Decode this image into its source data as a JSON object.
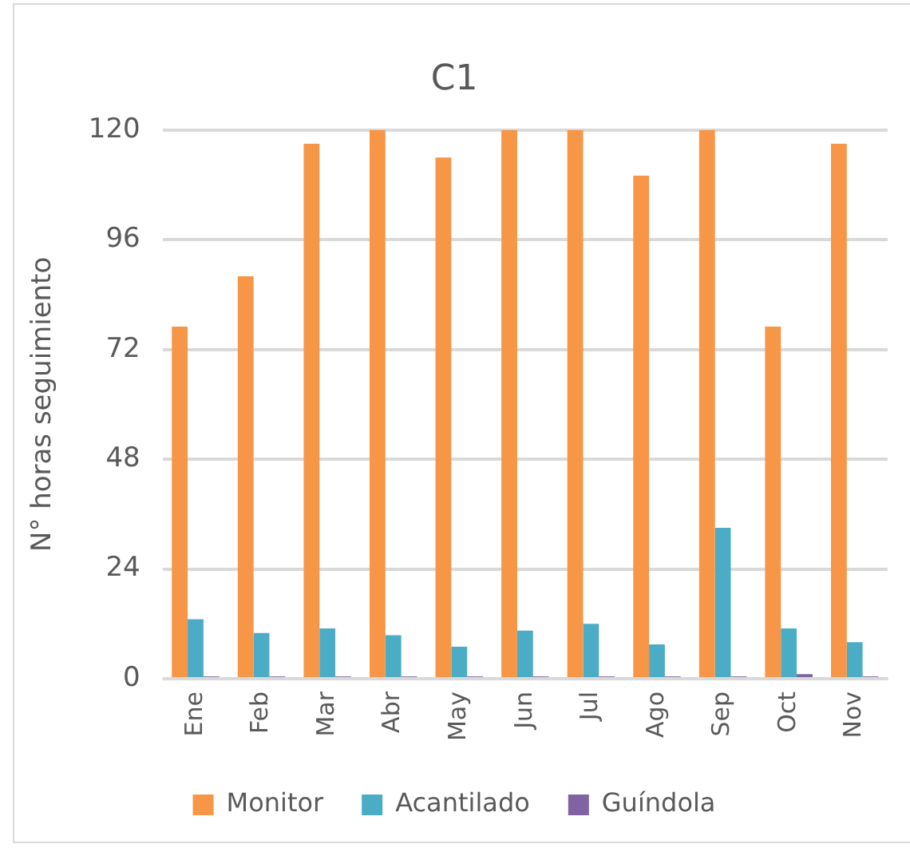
{
  "chart_data": {
    "type": "bar",
    "title": "C1",
    "ylabel": "N° horas seguimiento",
    "categories": [
      "Ene",
      "Feb",
      "Mar",
      "Abr",
      "May",
      "Jun",
      "Jul",
      "Ago",
      "Sep",
      "Oct",
      "Nov"
    ],
    "series": [
      {
        "name": "Monitor",
        "color": "#f79646",
        "values": [
          77,
          88,
          117,
          120,
          114,
          120,
          120,
          110,
          120,
          77,
          117
        ]
      },
      {
        "name": "Acantilado",
        "color": "#4bacc6",
        "values": [
          13,
          10,
          11,
          9.5,
          7,
          10.5,
          12,
          7.5,
          33,
          11,
          8
        ]
      },
      {
        "name": "Guíndola",
        "color": "#8064a2",
        "values": [
          0.5,
          0.5,
          0.5,
          0.5,
          0.5,
          0.5,
          0.5,
          0.5,
          0.5,
          1,
          0.5
        ]
      }
    ],
    "ylim": [
      0,
      120
    ],
    "yticks": [
      0,
      24,
      48,
      72,
      96,
      120
    ],
    "grid": "y",
    "legend": "bottom"
  }
}
